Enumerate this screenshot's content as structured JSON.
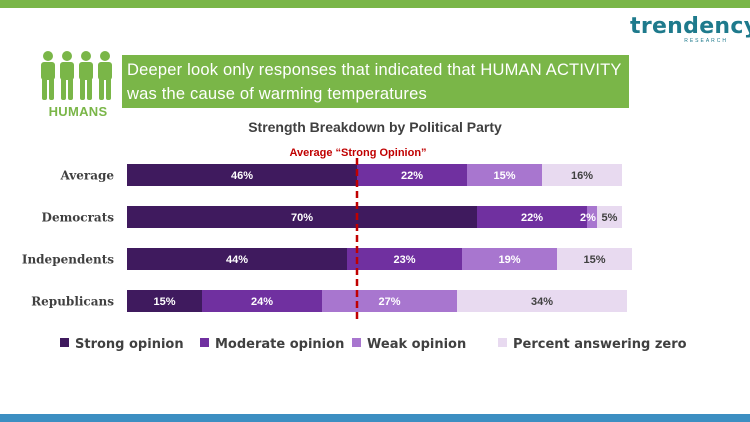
{
  "brand": {
    "name": "trendency",
    "tagline": "RESEARCH",
    "color": "#1e7a8c"
  },
  "header": {
    "icon": "people-group-icon",
    "label": "HUMANS",
    "banner_line1": "Deeper look only responses that indicated that HUMAN ACTIVITY",
    "banner_line2": "was the cause of warming temperatures"
  },
  "colors": {
    "green": "#7ab648",
    "blue": "#3c8fc2",
    "reference": "#c00000"
  },
  "chart_data": {
    "type": "bar",
    "orientation": "horizontal",
    "stacked": true,
    "title": "Strength Breakdown by Political Party",
    "categories": [
      "Average",
      "Democrats",
      "Independents",
      "Republicans"
    ],
    "series": [
      {
        "name": "Strong opinion",
        "color": "#3f1a5e",
        "values": [
          46,
          70,
          44,
          15
        ]
      },
      {
        "name": "Moderate opinion",
        "color": "#7030a0",
        "values": [
          22,
          22,
          23,
          24
        ]
      },
      {
        "name": "Weak opinion",
        "color": "#a876cf",
        "values": [
          15,
          2,
          19,
          27
        ]
      },
      {
        "name": "Percent answering zero",
        "color": "#e8daf0",
        "values": [
          16,
          5,
          15,
          34
        ]
      }
    ],
    "value_suffix": "%",
    "reference_line": {
      "label": "Average “Strong Opinion”",
      "value": 46
    },
    "xlim": [
      0,
      100
    ],
    "legend_position": "bottom"
  }
}
